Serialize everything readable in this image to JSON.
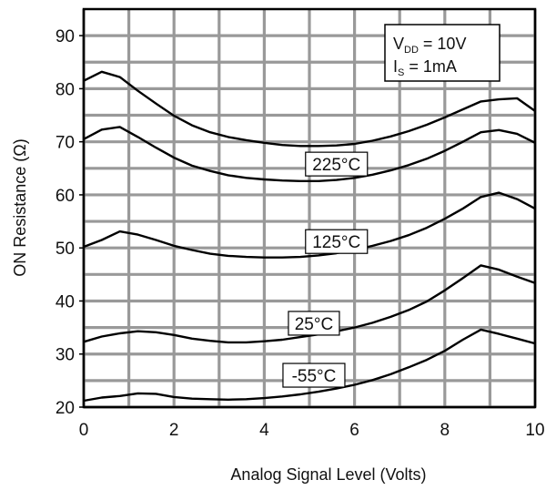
{
  "chart_data": {
    "type": "line",
    "title": "",
    "xlabel": "Analog Signal Level (Volts)",
    "ylabel": "ON Resistance (Ω)",
    "xlim": [
      0,
      10
    ],
    "ylim": [
      20,
      95
    ],
    "x_ticks": [
      0,
      2,
      4,
      6,
      8,
      10
    ],
    "y_ticks": [
      20,
      30,
      40,
      50,
      60,
      70,
      80,
      90
    ],
    "grid": true,
    "conditions": {
      "vdd_main": "V",
      "vdd_sub": "DD",
      "vdd_value": " = 10V",
      "is_main": "I",
      "is_sub": "S",
      "is_value": " = 1mA"
    },
    "series": [
      {
        "x": [
          0,
          0.4,
          0.8,
          1.2,
          1.6,
          2.0,
          2.4,
          2.8,
          3.2,
          3.6,
          4.0,
          4.4,
          4.8,
          5.2,
          5.6,
          6.0,
          6.4,
          6.8,
          7.2,
          7.6,
          8.0,
          8.4,
          8.8,
          9.2,
          9.6,
          10.0
        ],
        "values": [
          81.5,
          83.2,
          82.2,
          79.6,
          77.2,
          74.9,
          73.1,
          71.8,
          70.9,
          70.3,
          69.8,
          69.4,
          69.2,
          69.2,
          69.3,
          69.6,
          70.2,
          71.0,
          72.0,
          73.2,
          74.6,
          76.1,
          77.6,
          78.0,
          78.2,
          75.8
        ]
      },
      {
        "x": [
          0,
          0.4,
          0.8,
          1.2,
          1.6,
          2.0,
          2.4,
          2.8,
          3.2,
          3.6,
          4.0,
          4.4,
          4.8,
          5.2,
          5.6,
          6.0,
          6.4,
          6.8,
          7.2,
          7.6,
          8.0,
          8.4,
          8.8,
          9.2,
          9.6,
          10.0
        ],
        "values": [
          70.5,
          72.3,
          72.8,
          70.9,
          68.9,
          67.0,
          65.5,
          64.5,
          63.7,
          63.2,
          62.9,
          62.7,
          62.6,
          62.6,
          62.8,
          63.2,
          63.8,
          64.6,
          65.6,
          66.8,
          68.3,
          70.0,
          71.8,
          72.2,
          71.5,
          69.8
        ]
      },
      {
        "x": [
          0,
          0.4,
          0.8,
          1.2,
          1.6,
          2.0,
          2.4,
          2.8,
          3.2,
          3.6,
          4.0,
          4.4,
          4.8,
          5.2,
          5.6,
          6.0,
          6.4,
          6.8,
          7.2,
          7.6,
          8.0,
          8.4,
          8.8,
          9.2,
          9.6,
          10.0
        ],
        "values": [
          50.2,
          51.5,
          53.1,
          52.5,
          51.5,
          50.4,
          49.6,
          48.9,
          48.5,
          48.3,
          48.2,
          48.2,
          48.3,
          48.6,
          49.0,
          49.6,
          50.4,
          51.3,
          52.4,
          53.8,
          55.5,
          57.4,
          59.6,
          60.4,
          59.2,
          57.4
        ]
      },
      {
        "x": [
          0,
          0.4,
          0.8,
          1.2,
          1.6,
          2.0,
          2.4,
          2.8,
          3.2,
          3.6,
          4.0,
          4.4,
          4.8,
          5.2,
          5.6,
          6.0,
          6.4,
          6.8,
          7.2,
          7.6,
          8.0,
          8.4,
          8.8,
          9.2,
          9.6,
          10.0
        ],
        "values": [
          32.3,
          33.3,
          33.9,
          34.3,
          34.1,
          33.6,
          32.9,
          32.5,
          32.2,
          32.2,
          32.4,
          32.7,
          33.2,
          33.7,
          34.3,
          35.0,
          35.9,
          37.0,
          38.3,
          39.9,
          42.0,
          44.3,
          46.7,
          45.9,
          44.6,
          43.4
        ]
      },
      {
        "x": [
          0,
          0.4,
          0.8,
          1.2,
          1.6,
          2.0,
          2.4,
          2.8,
          3.2,
          3.6,
          4.0,
          4.4,
          4.8,
          5.2,
          5.6,
          6.0,
          6.4,
          6.8,
          7.2,
          7.6,
          8.0,
          8.4,
          8.8,
          9.2,
          9.6,
          10.0
        ],
        "values": [
          21.2,
          21.8,
          22.1,
          22.6,
          22.5,
          21.9,
          21.6,
          21.5,
          21.4,
          21.5,
          21.7,
          22.0,
          22.4,
          22.9,
          23.5,
          24.2,
          25.1,
          26.2,
          27.5,
          28.9,
          30.6,
          32.7,
          34.6,
          33.8,
          32.9,
          32.0
        ]
      }
    ],
    "annotations": [
      {
        "text": "225°C",
        "x": 5.6,
        "y": 65.8
      },
      {
        "text": "125°C",
        "x": 5.6,
        "y": 51.2
      },
      {
        "text": "25°C",
        "x": 5.1,
        "y": 35.8
      },
      {
        "text": "-55°C",
        "x": 5.1,
        "y": 26.0
      }
    ]
  }
}
